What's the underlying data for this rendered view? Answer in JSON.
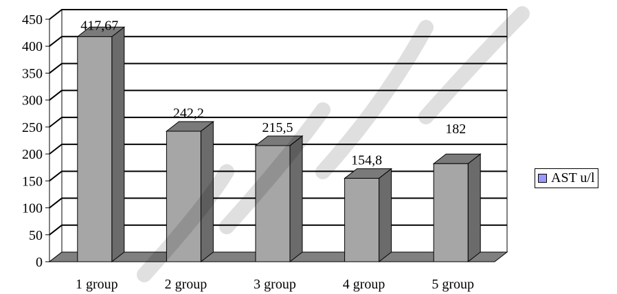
{
  "chart_data": {
    "type": "bar",
    "categories": [
      "1 group",
      "2 group",
      "3 group",
      "4 group",
      "5 group"
    ],
    "series": [
      {
        "name": "AST u/l",
        "values": [
          417.67,
          242.2,
          215.5,
          154.8,
          182
        ],
        "value_labels": [
          "417,67",
          "242,2",
          "215,5",
          "154,8",
          "182"
        ]
      }
    ],
    "ylim": [
      0,
      450
    ],
    "yticks": [
      0,
      50,
      100,
      150,
      200,
      250,
      300,
      350,
      400,
      450
    ],
    "grid": true,
    "legend_position": "right",
    "colors": {
      "bar_front": "#a6a6a6",
      "bar_side": "#6b6b6b",
      "bar_top": "#7a7a7a",
      "legend_swatch": "#9999ff"
    }
  },
  "legend": {
    "label": "AST u/l"
  }
}
